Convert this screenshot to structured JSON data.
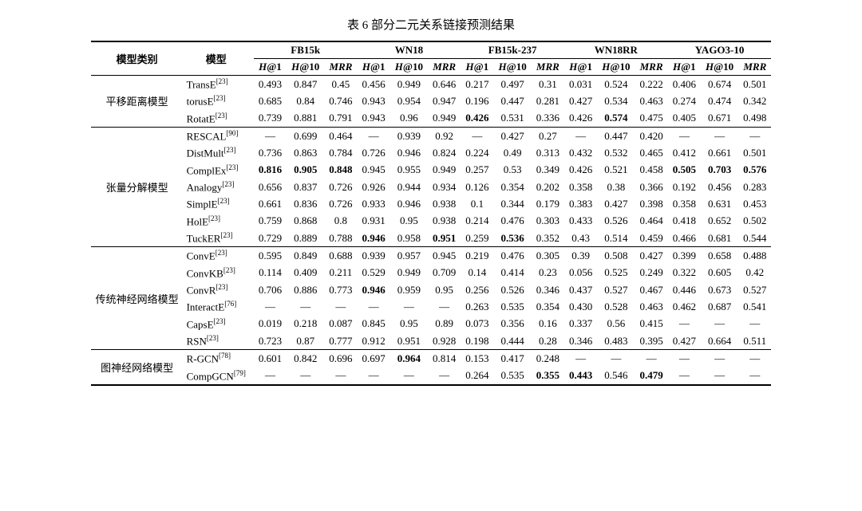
{
  "caption": "表 6  部分二元关系链接预测结果",
  "header": {
    "col_category": "模型类别",
    "col_model": "模型",
    "datasets": [
      "FB15k",
      "WN18",
      "FB15k-237",
      "WN18RR",
      "YAGO3-10"
    ],
    "metrics": [
      "H@1",
      "H@10",
      "MRR"
    ]
  },
  "bold_cells": {
    "ComplEx": [
      0,
      1,
      2,
      12,
      13,
      14
    ],
    "TuckER": [
      3,
      5,
      7
    ],
    "RotatE": [
      6,
      10
    ],
    "ConvR": [
      3
    ],
    "CompGCN": [
      8,
      9,
      11
    ],
    "R-GCN": [
      4
    ]
  },
  "groups": [
    {
      "category": "平移距离模型",
      "rows": [
        {
          "model": "TransE",
          "ref": "[23]",
          "v": [
            "0.493",
            "0.847",
            "0.45",
            "0.456",
            "0.949",
            "0.646",
            "0.217",
            "0.497",
            "0.31",
            "0.031",
            "0.524",
            "0.222",
            "0.406",
            "0.674",
            "0.501"
          ]
        },
        {
          "model": "torusE",
          "ref": "[23]",
          "v": [
            "0.685",
            "0.84",
            "0.746",
            "0.943",
            "0.954",
            "0.947",
            "0.196",
            "0.447",
            "0.281",
            "0.427",
            "0.534",
            "0.463",
            "0.274",
            "0.474",
            "0.342"
          ]
        },
        {
          "model": "RotatE",
          "ref": "[23]",
          "v": [
            "0.739",
            "0.881",
            "0.791",
            "0.943",
            "0.96",
            "0.949",
            "0.426",
            "0.531",
            "0.336",
            "0.426",
            "0.574",
            "0.475",
            "0.405",
            "0.671",
            "0.498"
          ]
        }
      ]
    },
    {
      "category": "张量分解模型",
      "rows": [
        {
          "model": "RESCAL",
          "ref": "[90]",
          "v": [
            "—",
            "0.699",
            "0.464",
            "—",
            "0.939",
            "0.92",
            "—",
            "0.427",
            "0.27",
            "—",
            "0.447",
            "0.420",
            "—",
            "—",
            "—"
          ]
        },
        {
          "model": "DistMult",
          "ref": "[23]",
          "v": [
            "0.736",
            "0.863",
            "0.784",
            "0.726",
            "0.946",
            "0.824",
            "0.224",
            "0.49",
            "0.313",
            "0.432",
            "0.532",
            "0.465",
            "0.412",
            "0.661",
            "0.501"
          ]
        },
        {
          "model": "ComplEx",
          "ref": "[23]",
          "v": [
            "0.816",
            "0.905",
            "0.848",
            "0.945",
            "0.955",
            "0.949",
            "0.257",
            "0.53",
            "0.349",
            "0.426",
            "0.521",
            "0.458",
            "0.505",
            "0.703",
            "0.576"
          ]
        },
        {
          "model": "Analogy",
          "ref": "[23]",
          "v": [
            "0.656",
            "0.837",
            "0.726",
            "0.926",
            "0.944",
            "0.934",
            "0.126",
            "0.354",
            "0.202",
            "0.358",
            "0.38",
            "0.366",
            "0.192",
            "0.456",
            "0.283"
          ]
        },
        {
          "model": "SimplE",
          "ref": "[23]",
          "v": [
            "0.661",
            "0.836",
            "0.726",
            "0.933",
            "0.946",
            "0.938",
            "0.1",
            "0.344",
            "0.179",
            "0.383",
            "0.427",
            "0.398",
            "0.358",
            "0.631",
            "0.453"
          ]
        },
        {
          "model": "HolE",
          "ref": "[23]",
          "v": [
            "0.759",
            "0.868",
            "0.8",
            "0.931",
            "0.95",
            "0.938",
            "0.214",
            "0.476",
            "0.303",
            "0.433",
            "0.526",
            "0.464",
            "0.418",
            "0.652",
            "0.502"
          ]
        },
        {
          "model": "TuckER",
          "ref": "[23]",
          "v": [
            "0.729",
            "0.889",
            "0.788",
            "0.946",
            "0.958",
            "0.951",
            "0.259",
            "0.536",
            "0.352",
            "0.43",
            "0.514",
            "0.459",
            "0.466",
            "0.681",
            "0.544"
          ]
        }
      ]
    },
    {
      "category": "传统神经网络模型",
      "rows": [
        {
          "model": "ConvE",
          "ref": "[23]",
          "v": [
            "0.595",
            "0.849",
            "0.688",
            "0.939",
            "0.957",
            "0.945",
            "0.219",
            "0.476",
            "0.305",
            "0.39",
            "0.508",
            "0.427",
            "0.399",
            "0.658",
            "0.488"
          ]
        },
        {
          "model": "ConvKB",
          "ref": "[23]",
          "v": [
            "0.114",
            "0.409",
            "0.211",
            "0.529",
            "0.949",
            "0.709",
            "0.14",
            "0.414",
            "0.23",
            "0.056",
            "0.525",
            "0.249",
            "0.322",
            "0.605",
            "0.42"
          ]
        },
        {
          "model": "ConvR",
          "ref": "[23]",
          "v": [
            "0.706",
            "0.886",
            "0.773",
            "0.946",
            "0.959",
            "0.95",
            "0.256",
            "0.526",
            "0.346",
            "0.437",
            "0.527",
            "0.467",
            "0.446",
            "0.673",
            "0.527"
          ]
        },
        {
          "model": "InteractE",
          "ref": "[76]",
          "v": [
            "—",
            "—",
            "—",
            "—",
            "—",
            "—",
            "0.263",
            "0.535",
            "0.354",
            "0.430",
            "0.528",
            "0.463",
            "0.462",
            "0.687",
            "0.541"
          ]
        },
        {
          "model": "CapsE",
          "ref": "[23]",
          "v": [
            "0.019",
            "0.218",
            "0.087",
            "0.845",
            "0.95",
            "0.89",
            "0.073",
            "0.356",
            "0.16",
            "0.337",
            "0.56",
            "0.415",
            "—",
            "—",
            "—"
          ]
        },
        {
          "model": "RSN",
          "ref": "[23]",
          "v": [
            "0.723",
            "0.87",
            "0.777",
            "0.912",
            "0.951",
            "0.928",
            "0.198",
            "0.444",
            "0.28",
            "0.346",
            "0.483",
            "0.395",
            "0.427",
            "0.664",
            "0.511"
          ]
        }
      ]
    },
    {
      "category": "图神经网络模型",
      "rows": [
        {
          "model": "R-GCN",
          "ref": "[78]",
          "v": [
            "0.601",
            "0.842",
            "0.696",
            "0.697",
            "0.964",
            "0.814",
            "0.153",
            "0.417",
            "0.248",
            "—",
            "—",
            "—",
            "—",
            "—",
            "—"
          ]
        },
        {
          "model": "CompGCN",
          "ref": "[79]",
          "v": [
            "—",
            "—",
            "—",
            "—",
            "—",
            "—",
            "0.264",
            "0.535",
            "0.355",
            "0.443",
            "0.546",
            "0.479",
            "—",
            "—",
            "—"
          ]
        }
      ]
    }
  ],
  "colors": {
    "text": "#000000",
    "background": "#ffffff"
  },
  "font": {
    "family": "Times New Roman / SimSun",
    "caption_pt": 15,
    "body_pt": 13,
    "sup_pt": 9
  }
}
